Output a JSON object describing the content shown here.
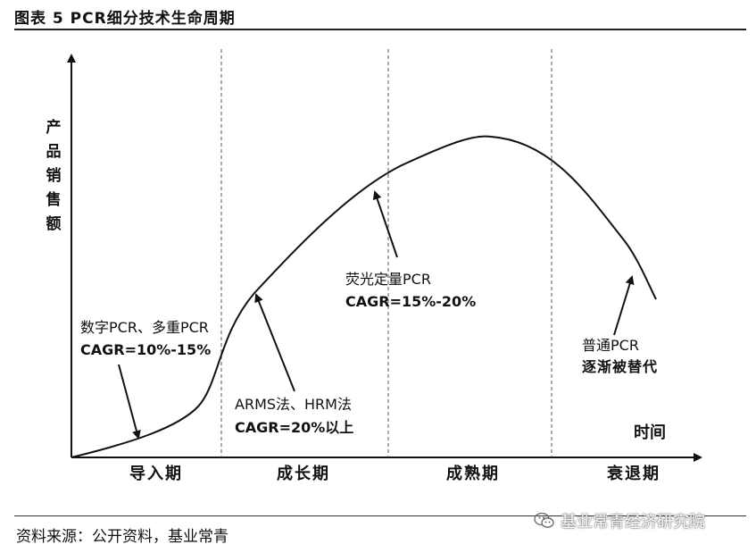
{
  "title": "图表 5 PCR细分技术生命周期",
  "y_axis_label": "产品销售额",
  "x_axis_label": "时间",
  "stages": [
    "导入期",
    "成长期",
    "成熟期",
    "衰退期"
  ],
  "annotations": [
    {
      "id": "intro",
      "line1": "数字PCR、多重PCR",
      "line2": "CAGR=10%-15%"
    },
    {
      "id": "growth",
      "line1": "ARMS法、HRM法",
      "line2": "CAGR=20%以上"
    },
    {
      "id": "mature",
      "line1": "荧光定量PCR",
      "line2": "CAGR=15%-20%"
    },
    {
      "id": "decline",
      "line1": "普通PCR",
      "line2": "逐渐被替代"
    }
  ],
  "source": "资料来源：公开资料，基业常青",
  "watermark": "基业常青经济研究院",
  "watermark_icon": "wechat-icon",
  "colors": {
    "line": "#111111",
    "divider": "#555555"
  }
}
